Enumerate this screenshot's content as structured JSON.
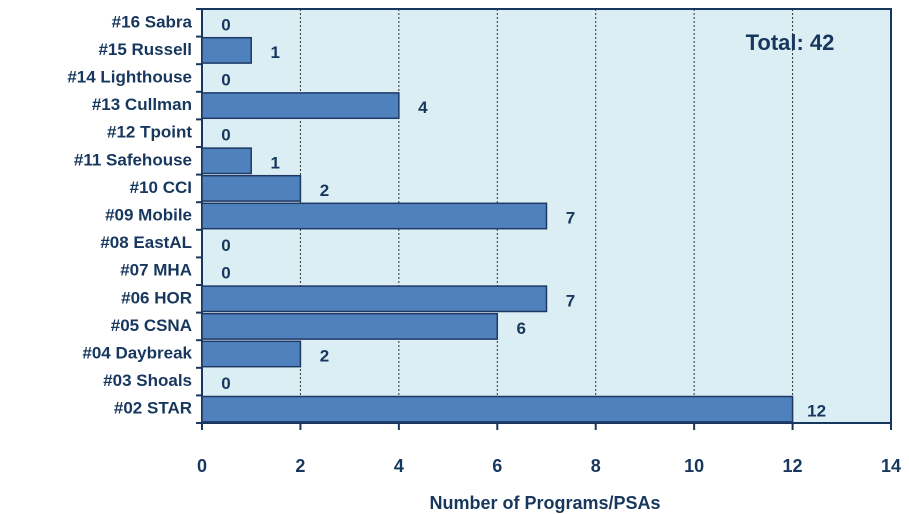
{
  "chart_data": {
    "type": "bar",
    "orientation": "horizontal",
    "categories": [
      "#16 Sabra",
      "#15 Russell",
      "#14 Lighthouse",
      "#13 Cullman",
      "#12 Tpoint",
      "#11 Safehouse",
      "#10 CCI",
      "#09 Mobile",
      "#08 EastAL",
      "#07 MHA",
      "#06 HOR",
      "#05 CSNA",
      "#04 Daybreak",
      "#03 Shoals",
      "#02 STAR"
    ],
    "values": [
      0,
      1,
      0,
      4,
      0,
      1,
      2,
      7,
      0,
      0,
      7,
      6,
      2,
      0,
      12
    ],
    "color": "#4f81bd",
    "xlabel": "Number of Programs/PSAs",
    "annotation": "Total:  42",
    "xlim": [
      0,
      14
    ],
    "xticks": [
      0,
      2,
      4,
      6,
      8,
      10,
      12,
      14
    ],
    "grid": true
  }
}
